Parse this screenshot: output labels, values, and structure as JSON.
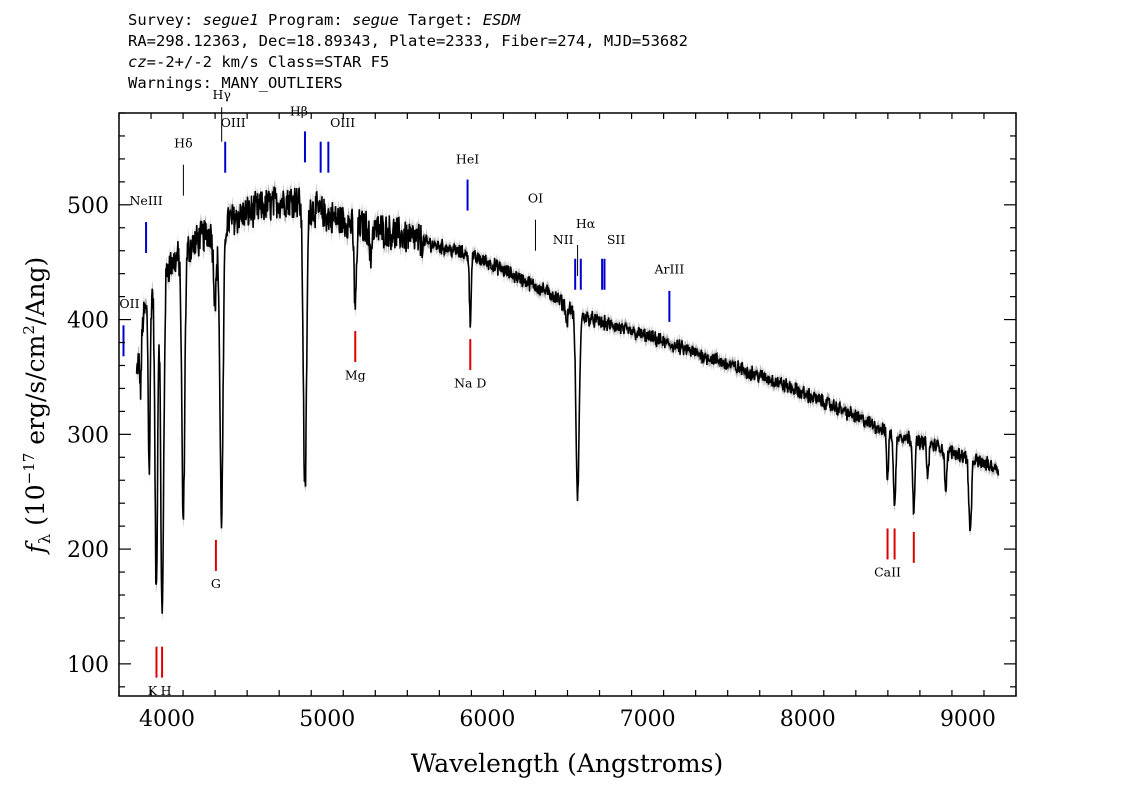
{
  "header": {
    "line1": {
      "survey_label": "Survey:",
      "survey_value": "segue1",
      "program_label": "Program:",
      "program_value": "segue",
      "target_label": "Target:",
      "target_value": "ESDM"
    },
    "line2": "RA=298.12363, Dec=18.89343, Plate=2333, Fiber=274, MJD=53682",
    "line3": {
      "cz_label": "cz",
      "cz_value": "=-2+/-2 km/s Class=STAR F5"
    },
    "line4": "Warnings: MANY_OUTLIERS"
  },
  "chart_data": {
    "type": "line",
    "xlabel": "Wavelength (Angstroms)",
    "ylabel_parts": {
      "f": "f",
      "sub": "λ",
      "a": " (10",
      "sup1": "−17",
      "b": " erg/s/cm",
      "sup2": "2",
      "c": "/Ang)"
    },
    "xlim": [
      3700,
      9300
    ],
    "ylim": [
      72,
      580
    ],
    "x_ticks": [
      4000,
      5000,
      6000,
      7000,
      8000,
      9000
    ],
    "y_ticks": [
      100,
      200,
      300,
      400,
      500
    ],
    "colors": {
      "flux": "#000000",
      "error_band": "#b0b0b0",
      "emission": "#0000cc",
      "absorption": "#dd0000",
      "sky": "#000000"
    },
    "continuum": [
      [
        3810,
        350
      ],
      [
        3850,
        400
      ],
      [
        3900,
        425
      ],
      [
        4000,
        445
      ],
      [
        4100,
        458
      ],
      [
        4200,
        470
      ],
      [
        4300,
        480
      ],
      [
        4400,
        487
      ],
      [
        4500,
        493
      ],
      [
        4600,
        498
      ],
      [
        4700,
        503
      ],
      [
        4800,
        505
      ],
      [
        4900,
        498
      ],
      [
        5000,
        490
      ],
      [
        5200,
        482
      ],
      [
        5400,
        476
      ],
      [
        5600,
        468
      ],
      [
        5800,
        460
      ],
      [
        6000,
        450
      ],
      [
        6200,
        436
      ],
      [
        6400,
        422
      ],
      [
        6560,
        405
      ],
      [
        6700,
        398
      ],
      [
        7000,
        385
      ],
      [
        7400,
        366
      ],
      [
        7800,
        346
      ],
      [
        8200,
        322
      ],
      [
        8500,
        302
      ],
      [
        8800,
        290
      ],
      [
        9000,
        280
      ],
      [
        9190,
        270
      ]
    ],
    "absorption_lines": [
      {
        "center": 3798,
        "depth": 30,
        "width": 4
      },
      {
        "center": 3835,
        "depth": 40,
        "width": 5
      },
      {
        "center": 3889,
        "depth": 150,
        "width": 6
      },
      {
        "center": 3933,
        "depth": 270,
        "width": 8
      },
      {
        "center": 3970,
        "depth": 300,
        "width": 9
      },
      {
        "center": 4101,
        "depth": 235,
        "width": 9
      },
      {
        "center": 4300,
        "depth": 60,
        "width": 10
      },
      {
        "center": 4340,
        "depth": 255,
        "width": 10
      },
      {
        "center": 4861,
        "depth": 255,
        "width": 10
      },
      {
        "center": 5175,
        "depth": 70,
        "width": 8
      },
      {
        "center": 5270,
        "depth": 30,
        "width": 6
      },
      {
        "center": 5893,
        "depth": 60,
        "width": 5
      },
      {
        "center": 6495,
        "depth": 15,
        "width": 6
      },
      {
        "center": 6563,
        "depth": 160,
        "width": 10
      },
      {
        "center": 8498,
        "depth": 40,
        "width": 6
      },
      {
        "center": 8542,
        "depth": 65,
        "width": 7
      },
      {
        "center": 8662,
        "depth": 60,
        "width": 7
      },
      {
        "center": 8750,
        "depth": 30,
        "width": 6
      },
      {
        "center": 8862,
        "depth": 35,
        "width": 7
      },
      {
        "center": 9014,
        "depth": 65,
        "width": 8
      }
    ],
    "line_markers": [
      {
        "label": "ОII",
        "display": "OII",
        "wavelength": 3728,
        "kind": "emission",
        "y_top": 395,
        "y_bottom": 368,
        "label_y": 410,
        "label_dx": 6
      },
      {
        "label": "NeIII",
        "display": "NeIII",
        "wavelength": 3869,
        "kind": "emission",
        "y_top": 485,
        "y_bottom": 458,
        "label_y": 500,
        "label_dx": 0
      },
      {
        "label": "Hδ",
        "display": "Hδ",
        "wavelength": 4102,
        "kind": "sky",
        "y_top": 535,
        "y_bottom": 508,
        "label_y": 550,
        "label_dx": 0
      },
      {
        "label": "Hγ",
        "display": "Hγ",
        "wavelength": 4341,
        "kind": "sky",
        "y_top": 585,
        "y_bottom": 555,
        "label_y": 592,
        "label_dx": 0
      },
      {
        "label": "OIII",
        "display": "OIII",
        "wavelength": 4363,
        "kind": "emission",
        "y_top": 555,
        "y_bottom": 528,
        "label_y": 568,
        "label_dx": 8
      },
      {
        "label": "Hβ",
        "display": "Hβ",
        "wavelength": 4861,
        "kind": "emission",
        "y_top": 564,
        "y_bottom": 537,
        "label_y": 578,
        "label_dx": -6
      },
      {
        "label": "OIII",
        "display": "OIII",
        "wavelength": 4959,
        "kind": "emission",
        "y_top": 555,
        "y_bottom": 528,
        "label_y": 568,
        "label_dx": 22
      },
      {
        "label": "OIII",
        "display": "",
        "wavelength": 5007,
        "kind": "emission",
        "y_top": 555,
        "y_bottom": 528,
        "label_y": 568,
        "label_dx": 0
      },
      {
        "label": "Mg",
        "display": "Mg",
        "wavelength": 5175,
        "kind": "absorption",
        "y_top": 390,
        "y_bottom": 363,
        "label_y": 348,
        "label_dx": 0
      },
      {
        "label": "HeI",
        "display": "HeI",
        "wavelength": 5876,
        "kind": "emission",
        "y_top": 522,
        "y_bottom": 495,
        "label_y": 536,
        "label_dx": 0
      },
      {
        "label": "Na D",
        "display": "Na  D",
        "wavelength": 5893,
        "kind": "absorption",
        "y_top": 383,
        "y_bottom": 356,
        "label_y": 341,
        "label_dx": 0
      },
      {
        "label": "OI",
        "display": "OI",
        "wavelength": 6300,
        "kind": "sky",
        "y_top": 487,
        "y_bottom": 460,
        "label_y": 502,
        "label_dx": 0
      },
      {
        "label": "NII",
        "display": "NII",
        "wavelength": 6548,
        "kind": "emission",
        "y_top": 453,
        "y_bottom": 426,
        "label_y": 466,
        "label_dx": -12
      },
      {
        "label": "Hα",
        "display": "Hα",
        "wavelength": 6563,
        "kind": "sky",
        "y_top": 465,
        "y_bottom": 438,
        "label_y": 480,
        "label_dx": 8
      },
      {
        "label": "NII",
        "display": "",
        "wavelength": 6583,
        "kind": "emission",
        "y_top": 453,
        "y_bottom": 426,
        "label_y": 466,
        "label_dx": 0
      },
      {
        "label": "SII",
        "display": "SII",
        "wavelength": 6716,
        "kind": "emission",
        "y_top": 453,
        "y_bottom": 426,
        "label_y": 466,
        "label_dx": 14
      },
      {
        "label": "SII",
        "display": "",
        "wavelength": 6731,
        "kind": "emission",
        "y_top": 453,
        "y_bottom": 426,
        "label_y": 466,
        "label_dx": 0
      },
      {
        "label": "ArIII",
        "display": "ArIII",
        "wavelength": 7136,
        "kind": "emission",
        "y_top": 425,
        "y_bottom": 398,
        "label_y": 440,
        "label_dx": 0
      },
      {
        "label": "K",
        "display": "K",
        "wavelength": 3934,
        "kind": "absorption",
        "y_top": 115,
        "y_bottom": 88,
        "label_y": 73,
        "label_dx": -4
      },
      {
        "label": "H",
        "display": "H",
        "wavelength": 3969,
        "kind": "absorption",
        "y_top": 115,
        "y_bottom": 88,
        "label_y": 73,
        "label_dx": 4
      },
      {
        "label": "G",
        "display": "G",
        "wavelength": 4305,
        "kind": "absorption",
        "y_top": 208,
        "y_bottom": 181,
        "label_y": 166,
        "label_dx": 0
      },
      {
        "label": "CaII",
        "display": "CaII",
        "wavelength": 8498,
        "kind": "absorption",
        "y_top": 218,
        "y_bottom": 191,
        "label_y": 176,
        "label_dx": 0
      },
      {
        "label": "CaII",
        "display": "",
        "wavelength": 8542,
        "kind": "absorption",
        "y_top": 218,
        "y_bottom": 191,
        "label_y": 176,
        "label_dx": 0
      },
      {
        "label": "CaII",
        "display": "",
        "wavelength": 8662,
        "kind": "absorption",
        "y_top": 215,
        "y_bottom": 188,
        "label_y": 176,
        "label_dx": 0
      }
    ]
  }
}
